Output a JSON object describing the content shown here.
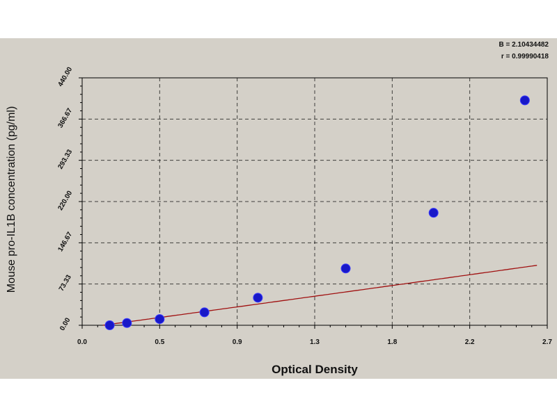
{
  "chart_data": {
    "type": "scatter",
    "xlabel": "Optical Density",
    "ylabel": "Mouse pro-IL1B  concentration (pg/ml)",
    "xlim": [
      0.0,
      2.7
    ],
    "ylim": [
      0.0,
      440.0
    ],
    "x_ticks": [
      0.0,
      0.45,
      0.9,
      1.35,
      1.8,
      2.25,
      2.7
    ],
    "x_tick_labels": [
      "0.0",
      "0.5",
      "0.9",
      "1.3",
      "1.8",
      "2.2",
      "2.7"
    ],
    "y_ticks": [
      0,
      73.33,
      146.67,
      220,
      293.33,
      366.67,
      440
    ],
    "y_tick_labels": [
      "0.00",
      "73.33",
      "146.67",
      "220.00",
      "293.33",
      "366.67",
      "440.00"
    ],
    "grid": true,
    "series": [
      {
        "type": "scatter",
        "points": [
          {
            "x": 0.16,
            "y": 0
          },
          {
            "x": 0.26,
            "y": 4
          },
          {
            "x": 0.45,
            "y": 11
          },
          {
            "x": 0.71,
            "y": 23
          },
          {
            "x": 1.02,
            "y": 49
          },
          {
            "x": 1.53,
            "y": 101
          },
          {
            "x": 2.04,
            "y": 200
          },
          {
            "x": 2.57,
            "y": 400
          }
        ]
      },
      {
        "type": "line",
        "fit_curve": {
          "a": 0.12,
          "b": 41.65,
          "c": 0.0013,
          "p": 2.1043,
          "x_end": 2.64
        },
        "color": "#a01010"
      }
    ],
    "annotations": {
      "fit_b": "B = 2.10434482",
      "fit_r": "r = 0.99990418"
    },
    "colors": {
      "points": "#1818c8",
      "curve": "#a01010",
      "plot_bg": "#d4d0c8",
      "plot_border": "#000000",
      "grid": "#000000"
    }
  }
}
